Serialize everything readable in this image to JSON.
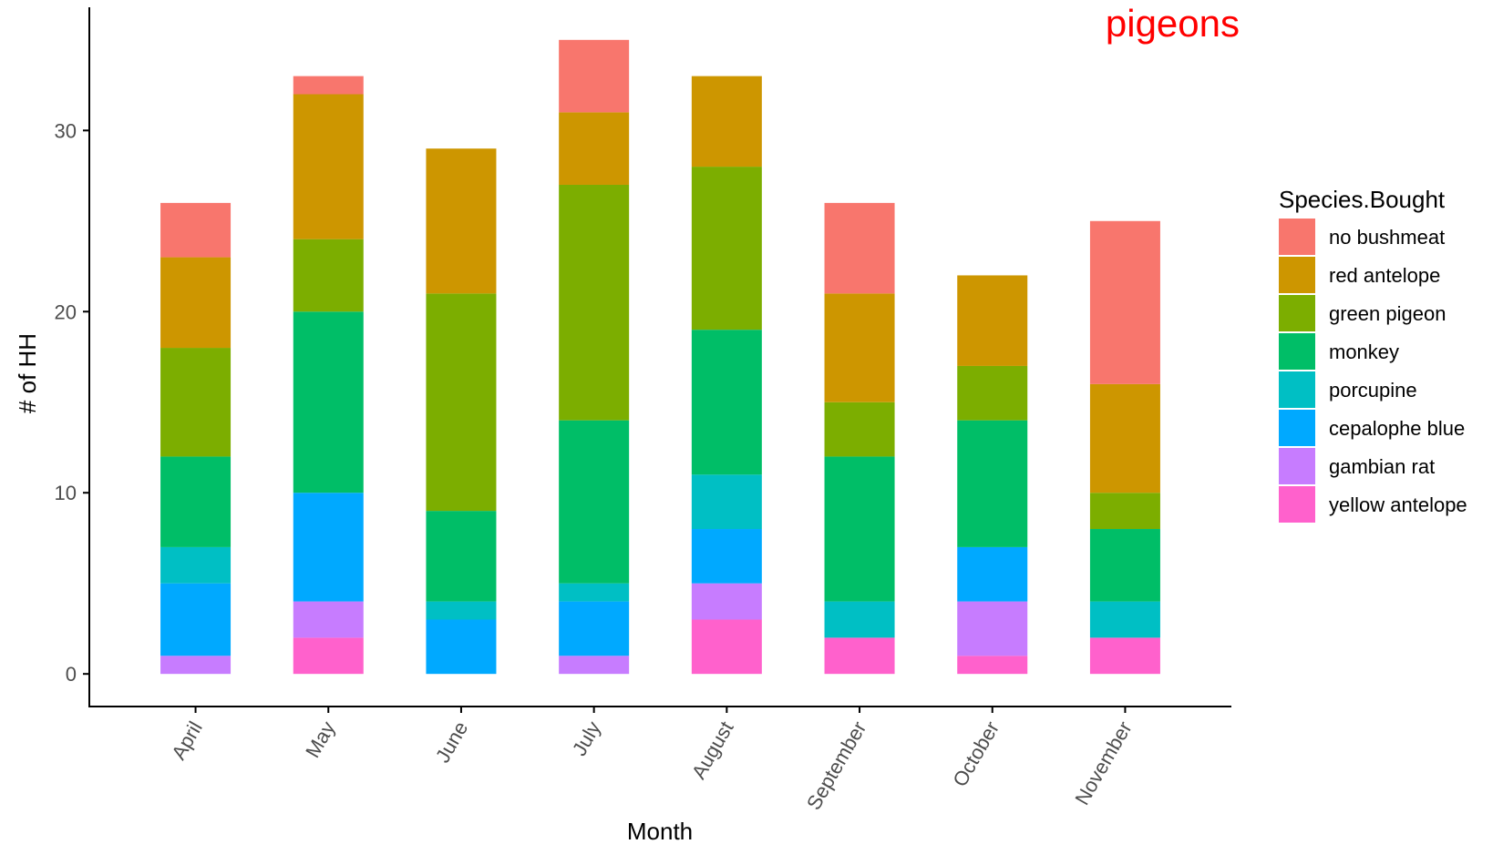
{
  "chart_data": {
    "type": "bar",
    "stacked": true,
    "title": "",
    "annotation": "pigeons",
    "xlabel": "Month",
    "ylabel": "# of HH",
    "ylim": [
      -1.8,
      36.8
    ],
    "yticks": [
      0,
      10,
      20,
      30
    ],
    "grid": false,
    "legend_title": "Species.Bought",
    "legend_position": "right",
    "categories": [
      "April",
      "May",
      "June",
      "July",
      "August",
      "September",
      "October",
      "November"
    ],
    "series": [
      {
        "name": "no bushmeat",
        "color": "#F8766D",
        "values": [
          3,
          1,
          0,
          4,
          0,
          5,
          0,
          9
        ]
      },
      {
        "name": "red antelope",
        "color": "#CD9600",
        "values": [
          5,
          8,
          8,
          4,
          5,
          6,
          5,
          6
        ]
      },
      {
        "name": "green pigeon",
        "color": "#7CAE00",
        "values": [
          6,
          4,
          12,
          13,
          9,
          3,
          3,
          2
        ]
      },
      {
        "name": "monkey",
        "color": "#00BE67",
        "values": [
          5,
          10,
          5,
          9,
          8,
          8,
          7,
          4
        ]
      },
      {
        "name": "porcupine",
        "color": "#00BFC4",
        "values": [
          2,
          0,
          1,
          1,
          3,
          2,
          0,
          2
        ]
      },
      {
        "name": "cepalophe blue",
        "color": "#00A9FF",
        "values": [
          4,
          6,
          3,
          3,
          3,
          0,
          3,
          0
        ]
      },
      {
        "name": "gambian rat",
        "color": "#C77CFF",
        "values": [
          1,
          2,
          0,
          1,
          2,
          0,
          3,
          0
        ]
      },
      {
        "name": "yellow antelope",
        "color": "#FF61CC",
        "values": [
          0,
          2,
          0,
          0,
          3,
          2,
          1,
          2
        ]
      }
    ],
    "annotation_color": "#FF0000",
    "axis_color": "#000000"
  }
}
